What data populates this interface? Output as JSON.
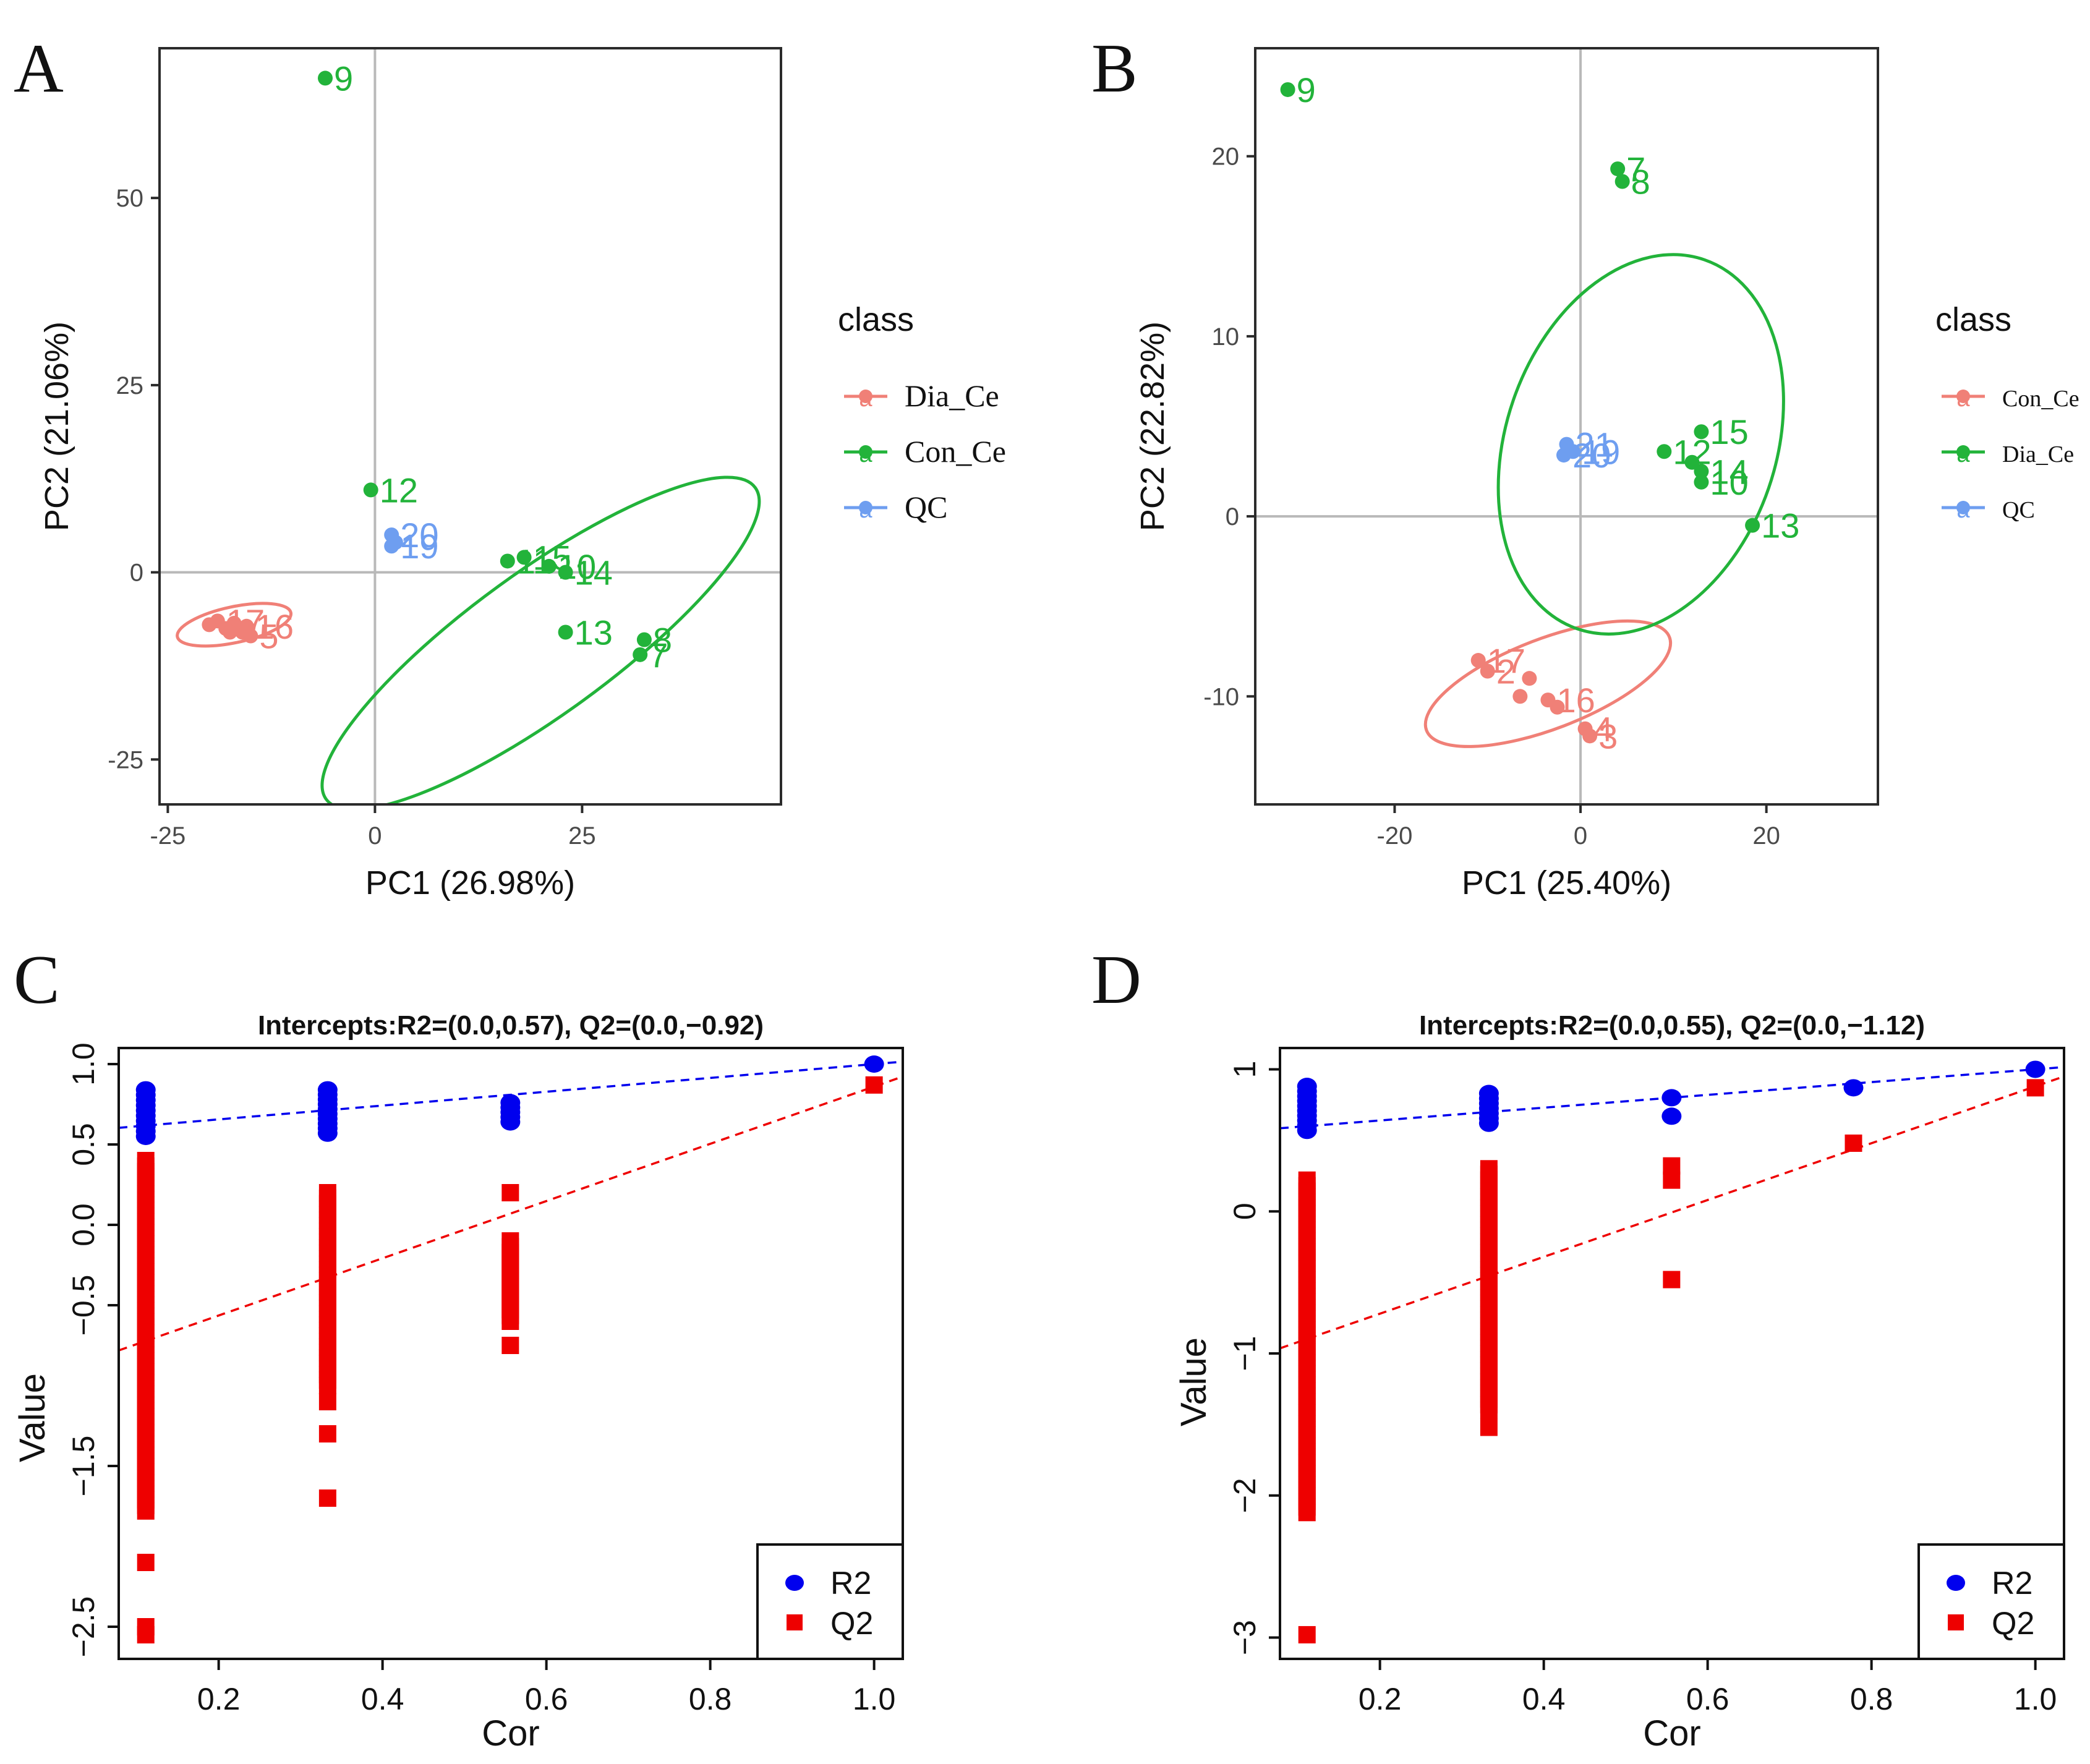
{
  "chart_data": [
    {
      "panel": "A",
      "type": "scatter",
      "title": "",
      "xlabel": "PC1 (26.98%)",
      "ylabel": "PC2 (21.06%)",
      "xlim": [
        -26,
        49
      ],
      "ylim": [
        -31,
        70
      ],
      "xticks": [
        -25,
        0,
        25
      ],
      "yticks": [
        -25,
        0,
        25,
        50
      ],
      "legend_title": "class",
      "legend": [
        {
          "label": "Dia_Ce",
          "color": "#F08077"
        },
        {
          "label": "Con_Ce",
          "color": "#22B33A"
        },
        {
          "label": "QC",
          "color": "#6E9EF0"
        }
      ],
      "ellipses": [
        {
          "series": "Dia_Ce",
          "cx": -17,
          "cy": -7,
          "rx": 7,
          "ry": 2.4,
          "angle": 12
        },
        {
          "series": "Con_Ce",
          "cx": 20,
          "cy": -9.5,
          "rx": 32,
          "ry": 9.5,
          "angle": 36
        }
      ],
      "series": [
        {
          "name": "Dia_Ce",
          "points": [
            {
              "x": -19,
              "y": -6.5,
              "label": "17"
            },
            {
              "x": -20,
              "y": -7,
              "label": ""
            },
            {
              "x": -18,
              "y": -7.5,
              "label": ""
            },
            {
              "x": -17,
              "y": -6.8,
              "label": ""
            },
            {
              "x": -16,
              "y": -8,
              "label": ""
            },
            {
              "x": -15.5,
              "y": -7.2,
              "label": "16"
            },
            {
              "x": -15,
              "y": -8.5,
              "label": "5"
            },
            {
              "x": -17.5,
              "y": -8,
              "label": ""
            }
          ]
        },
        {
          "name": "Con_Ce",
          "points": [
            {
              "x": -6,
              "y": 66,
              "label": "9"
            },
            {
              "x": -0.5,
              "y": 11,
              "label": "12"
            },
            {
              "x": 16,
              "y": 1.5,
              "label": "11"
            },
            {
              "x": 18,
              "y": 2,
              "label": "15"
            },
            {
              "x": 21,
              "y": 0.8,
              "label": "10"
            },
            {
              "x": 23,
              "y": 0,
              "label": "14"
            },
            {
              "x": 23,
              "y": -8,
              "label": "13"
            },
            {
              "x": 32.5,
              "y": -9,
              "label": "8"
            },
            {
              "x": 32,
              "y": -11,
              "label": "7"
            }
          ]
        },
        {
          "name": "QC",
          "points": [
            {
              "x": 2,
              "y": 5,
              "label": "20"
            },
            {
              "x": 2.5,
              "y": 4,
              "label": ""
            },
            {
              "x": 2,
              "y": 3.5,
              "label": "19"
            }
          ]
        }
      ]
    },
    {
      "panel": "B",
      "type": "scatter",
      "title": "",
      "xlabel": "PC1 (25.40%)",
      "ylabel": "PC2 (22.82%)",
      "xlim": [
        -35,
        32
      ],
      "ylim": [
        -16,
        26
      ],
      "xticks": [
        -20,
        0,
        20
      ],
      "yticks": [
        -10,
        0,
        10,
        20
      ],
      "legend_title": "class",
      "legend": [
        {
          "label": "Con_Ce",
          "color": "#F08077"
        },
        {
          "label": "Dia_Ce",
          "color": "#22B33A"
        },
        {
          "label": "QC",
          "color": "#6E9EF0"
        }
      ],
      "ellipses": [
        {
          "series": "Con_Ce",
          "cx": -3.5,
          "cy": -9.3,
          "rx": 14,
          "ry": 2.5,
          "angle": 21
        },
        {
          "series": "Dia_Ce",
          "cx": 6.5,
          "cy": 4,
          "rx": 21,
          "ry": 7.5,
          "angle": 71
        }
      ],
      "series": [
        {
          "name": "Con_Ce",
          "points": [
            {
              "x": -11,
              "y": -8,
              "label": "17"
            },
            {
              "x": -10,
              "y": -8.6,
              "label": "2"
            },
            {
              "x": -5.5,
              "y": -9,
              "label": ""
            },
            {
              "x": -6.5,
              "y": -10,
              "label": ""
            },
            {
              "x": -3.5,
              "y": -10.2,
              "label": "16"
            },
            {
              "x": -2.5,
              "y": -10.6,
              "label": ""
            },
            {
              "x": 0.5,
              "y": -11.8,
              "label": "4"
            },
            {
              "x": 1,
              "y": -12.2,
              "label": "3"
            }
          ]
        },
        {
          "name": "Dia_Ce",
          "points": [
            {
              "x": -31.5,
              "y": 23.7,
              "label": "9"
            },
            {
              "x": 4,
              "y": 19.3,
              "label": "7"
            },
            {
              "x": 4.5,
              "y": 18.6,
              "label": "8"
            },
            {
              "x": 13,
              "y": 4.7,
              "label": "15"
            },
            {
              "x": 9,
              "y": 3.6,
              "label": "12"
            },
            {
              "x": 12,
              "y": 3,
              "label": ""
            },
            {
              "x": 13,
              "y": 2.5,
              "label": "14"
            },
            {
              "x": 13,
              "y": 1.9,
              "label": "10"
            },
            {
              "x": 18.5,
              "y": -0.5,
              "label": "13"
            }
          ]
        },
        {
          "name": "QC",
          "points": [
            {
              "x": -1.5,
              "y": 4,
              "label": "21"
            },
            {
              "x": -1.8,
              "y": 3.4,
              "label": "20"
            },
            {
              "x": -0.8,
              "y": 3.6,
              "label": "19"
            }
          ]
        }
      ]
    },
    {
      "panel": "C",
      "type": "scatter",
      "title": "Intercepts:R2=(0.0,0.57), Q2=(0.0,−0.92)",
      "xlabel": "Cor",
      "ylabel": "Value",
      "xlim": [
        0.078,
        1.035
      ],
      "ylim": [
        -2.7,
        1.1
      ],
      "xticks": [
        0.2,
        0.4,
        0.6,
        0.8,
        1.0
      ],
      "xtick_labels": [
        "0.2",
        "0.4",
        "0.6",
        "0.8",
        "1.0"
      ],
      "yticks": [
        1.0,
        0.5,
        0.0,
        -0.5,
        -1.5,
        -2.5
      ],
      "ytick_labels": [
        "1.0",
        "0.5",
        "0.0",
        "−0.5",
        "−1.5",
        "−2.5"
      ],
      "legend": [
        {
          "label": "R2",
          "color": "#0000EE"
        },
        {
          "label": "Q2",
          "color": "#EE0000"
        }
      ],
      "regression_lines": [
        {
          "series": "R2",
          "intercept": 0.57,
          "slope": 0.43
        },
        {
          "series": "Q2",
          "intercept": -0.92,
          "slope": 1.78
        }
      ],
      "r2_groups": [
        {
          "x": 0.111,
          "min": 0.55,
          "max": 0.84
        },
        {
          "x": 0.333,
          "min": 0.57,
          "max": 0.84
        },
        {
          "x": 0.556,
          "min": 0.64,
          "max": 0.76
        }
      ],
      "r2_points": [
        {
          "x": 1.0,
          "y": 1.0
        }
      ],
      "q2_groups": [
        {
          "x": 0.111,
          "min": -1.78,
          "max": 0.4
        },
        {
          "x": 0.333,
          "min": -1.0,
          "max": 0.2
        },
        {
          "x": 0.556,
          "min": -0.6,
          "max": -0.1
        }
      ],
      "q2_points": [
        {
          "x": 0.111,
          "y": -2.1
        },
        {
          "x": 0.111,
          "y": -2.5
        },
        {
          "x": 0.111,
          "y": -2.55
        },
        {
          "x": 0.333,
          "y": -1.1
        },
        {
          "x": 0.333,
          "y": -1.3
        },
        {
          "x": 0.333,
          "y": -1.7
        },
        {
          "x": 0.556,
          "y": 0.2
        },
        {
          "x": 0.556,
          "y": -0.75
        },
        {
          "x": 1.0,
          "y": 0.87
        }
      ]
    },
    {
      "panel": "D",
      "type": "scatter",
      "title": "Intercepts:R2=(0.0,0.55), Q2=(0.0,−1.12)",
      "xlabel": "Cor",
      "ylabel": "Value",
      "xlim": [
        0.078,
        1.035
      ],
      "ylim": [
        -3.15,
        1.15
      ],
      "xticks": [
        0.2,
        0.4,
        0.6,
        0.8,
        1.0
      ],
      "xtick_labels": [
        "0.2",
        "0.4",
        "0.6",
        "0.8",
        "1.0"
      ],
      "yticks": [
        1,
        0,
        -1,
        -2,
        -3
      ],
      "ytick_labels": [
        "1",
        "0",
        "−1",
        "−2",
        "−3"
      ],
      "legend": [
        {
          "label": "R2",
          "color": "#0000EE"
        },
        {
          "label": "Q2",
          "color": "#EE0000"
        }
      ],
      "regression_lines": [
        {
          "series": "R2",
          "intercept": 0.55,
          "slope": 0.45
        },
        {
          "series": "Q2",
          "intercept": -1.12,
          "slope": 2.0
        }
      ],
      "r2_groups": [
        {
          "x": 0.111,
          "min": 0.57,
          "max": 0.88
        },
        {
          "x": 0.333,
          "min": 0.62,
          "max": 0.83
        }
      ],
      "r2_points": [
        {
          "x": 0.556,
          "y": 0.8
        },
        {
          "x": 0.556,
          "y": 0.67
        },
        {
          "x": 0.778,
          "y": 0.87
        },
        {
          "x": 1.0,
          "y": 1.0
        }
      ],
      "q2_groups": [
        {
          "x": 0.111,
          "min": -2.12,
          "max": 0.22
        },
        {
          "x": 0.333,
          "min": -1.4,
          "max": 0.3
        }
      ],
      "q2_points": [
        {
          "x": 0.111,
          "y": -2.98
        },
        {
          "x": 0.333,
          "y": -1.52
        },
        {
          "x": 0.556,
          "y": 0.32
        },
        {
          "x": 0.556,
          "y": 0.22
        },
        {
          "x": 0.556,
          "y": -0.48
        },
        {
          "x": 0.778,
          "y": 0.48
        },
        {
          "x": 1.0,
          "y": 0.87
        }
      ]
    }
  ]
}
